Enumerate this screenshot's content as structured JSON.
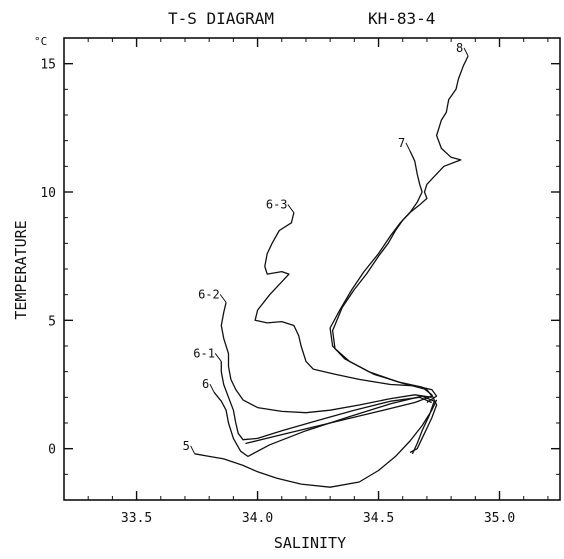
{
  "chart_data": {
    "type": "line",
    "title": "T-S DIAGRAM",
    "cruise": "KH-83-4",
    "xlabel": "SALINITY",
    "ylabel": "TEMPERATURE",
    "yunit": "°C",
    "xlim": [
      33.2,
      35.25
    ],
    "ylim": [
      -2,
      16
    ],
    "xticks": [
      "33.5",
      "34.0",
      "34.5",
      "35.0"
    ],
    "xtick_values": [
      33.5,
      34.0,
      34.5,
      35.0
    ],
    "yticks": [
      "0",
      "5",
      "10",
      "15"
    ],
    "ytick_values": [
      0,
      5,
      10,
      15
    ],
    "grid": false,
    "legend": "none",
    "series": [
      {
        "name": "8",
        "values": [
          [
            34.87,
            15.3
          ],
          [
            34.85,
            14.9
          ],
          [
            34.83,
            14.4
          ],
          [
            34.82,
            14.0
          ],
          [
            34.79,
            13.6
          ],
          [
            34.78,
            13.1
          ],
          [
            34.76,
            12.8
          ],
          [
            34.74,
            12.2
          ],
          [
            34.76,
            11.7
          ],
          [
            34.8,
            11.35
          ],
          [
            34.84,
            11.25
          ],
          [
            34.77,
            11.0
          ],
          [
            34.73,
            10.6
          ],
          [
            34.7,
            10.3
          ],
          [
            34.69,
            10.0
          ],
          [
            34.7,
            9.75
          ],
          [
            34.67,
            9.5
          ],
          [
            34.63,
            9.2
          ],
          [
            34.6,
            8.9
          ],
          [
            34.57,
            8.5
          ],
          [
            34.54,
            8.0
          ],
          [
            34.5,
            7.5
          ],
          [
            34.45,
            6.8
          ],
          [
            34.4,
            6.2
          ],
          [
            34.35,
            5.5
          ],
          [
            34.31,
            4.6
          ],
          [
            34.32,
            3.9
          ],
          [
            34.38,
            3.4
          ],
          [
            34.48,
            2.9
          ],
          [
            34.6,
            2.55
          ],
          [
            34.7,
            2.3
          ],
          [
            34.72,
            2.05
          ],
          [
            34.65,
            1.8
          ],
          [
            34.5,
            1.45
          ],
          [
            34.3,
            1.0
          ],
          [
            34.1,
            0.55
          ],
          [
            33.95,
            0.2
          ]
        ]
      },
      {
        "name": "7",
        "values": [
          [
            34.63,
            11.6
          ],
          [
            34.65,
            11.2
          ],
          [
            34.66,
            10.7
          ],
          [
            34.67,
            10.3
          ],
          [
            34.68,
            10.0
          ],
          [
            34.66,
            9.6
          ],
          [
            34.63,
            9.2
          ],
          [
            34.59,
            8.8
          ],
          [
            34.55,
            8.3
          ],
          [
            34.5,
            7.6
          ],
          [
            34.44,
            6.9
          ],
          [
            34.39,
            6.2
          ],
          [
            34.34,
            5.4
          ],
          [
            34.3,
            4.7
          ],
          [
            34.31,
            4.0
          ],
          [
            34.36,
            3.5
          ],
          [
            34.46,
            3.0
          ],
          [
            34.58,
            2.6
          ],
          [
            34.68,
            2.4
          ],
          [
            34.72,
            2.1
          ],
          [
            34.74,
            1.7
          ],
          [
            34.72,
            1.2
          ],
          [
            34.69,
            0.6
          ],
          [
            34.66,
            0.0
          ],
          [
            34.63,
            -0.15
          ]
        ]
      },
      {
        "name": "6-3",
        "values": [
          [
            34.15,
            9.2
          ],
          [
            34.14,
            8.8
          ],
          [
            34.09,
            8.5
          ],
          [
            34.06,
            8.0
          ],
          [
            34.04,
            7.6
          ],
          [
            34.03,
            7.1
          ],
          [
            34.04,
            6.8
          ],
          [
            34.1,
            6.9
          ],
          [
            34.13,
            6.8
          ],
          [
            34.09,
            6.4
          ],
          [
            34.05,
            6.0
          ],
          [
            34.0,
            5.4
          ],
          [
            33.99,
            5.0
          ],
          [
            34.04,
            4.9
          ],
          [
            34.1,
            4.95
          ],
          [
            34.15,
            4.8
          ],
          [
            34.17,
            4.4
          ],
          [
            34.18,
            4.0
          ],
          [
            34.2,
            3.4
          ],
          [
            34.23,
            3.1
          ],
          [
            34.32,
            2.9
          ],
          [
            34.42,
            2.7
          ],
          [
            34.55,
            2.5
          ],
          [
            34.65,
            2.45
          ],
          [
            34.72,
            2.3
          ],
          [
            34.74,
            2.05
          ],
          [
            34.7,
            1.8
          ]
        ]
      },
      {
        "name": "6-2",
        "values": [
          [
            33.87,
            5.7
          ],
          [
            33.86,
            5.3
          ],
          [
            33.85,
            4.8
          ],
          [
            33.86,
            4.3
          ],
          [
            33.88,
            3.7
          ],
          [
            33.88,
            3.2
          ],
          [
            33.89,
            2.7
          ],
          [
            33.91,
            2.3
          ],
          [
            33.94,
            1.9
          ],
          [
            34.0,
            1.6
          ],
          [
            34.1,
            1.45
          ],
          [
            34.2,
            1.4
          ],
          [
            34.3,
            1.5
          ],
          [
            34.42,
            1.7
          ],
          [
            34.55,
            1.95
          ],
          [
            34.65,
            2.1
          ],
          [
            34.72,
            2.0
          ]
        ]
      },
      {
        "name": "6-1",
        "values": [
          [
            33.85,
            3.4
          ],
          [
            33.85,
            3.0
          ],
          [
            33.86,
            2.5
          ],
          [
            33.88,
            2.0
          ],
          [
            33.9,
            1.5
          ],
          [
            33.91,
            1.0
          ],
          [
            33.92,
            0.6
          ],
          [
            33.94,
            0.35
          ],
          [
            34.0,
            0.4
          ],
          [
            34.1,
            0.7
          ],
          [
            34.25,
            1.1
          ],
          [
            34.4,
            1.5
          ],
          [
            34.55,
            1.85
          ],
          [
            34.67,
            2.0
          ],
          [
            34.72,
            1.8
          ]
        ]
      },
      {
        "name": "6",
        "values": [
          [
            33.82,
            2.2
          ],
          [
            33.85,
            1.85
          ],
          [
            33.87,
            1.5
          ],
          [
            33.88,
            1.0
          ],
          [
            33.9,
            0.4
          ],
          [
            33.93,
            -0.1
          ],
          [
            33.96,
            -0.3
          ],
          [
            34.05,
            0.15
          ],
          [
            34.2,
            0.7
          ],
          [
            34.38,
            1.25
          ],
          [
            34.55,
            1.75
          ],
          [
            34.68,
            2.05
          ],
          [
            34.73,
            1.85
          ],
          [
            34.71,
            1.3
          ],
          [
            34.68,
            0.7
          ],
          [
            34.66,
            0.2
          ],
          [
            34.64,
            -0.2
          ]
        ]
      },
      {
        "name": "5",
        "values": [
          [
            33.74,
            -0.2
          ],
          [
            33.8,
            -0.3
          ],
          [
            33.86,
            -0.4
          ],
          [
            33.94,
            -0.65
          ],
          [
            34.0,
            -0.9
          ],
          [
            34.08,
            -1.15
          ],
          [
            34.18,
            -1.38
          ],
          [
            34.3,
            -1.5
          ],
          [
            34.42,
            -1.3
          ],
          [
            34.5,
            -0.85
          ],
          [
            34.57,
            -0.3
          ],
          [
            34.63,
            0.3
          ],
          [
            34.68,
            0.9
          ],
          [
            34.72,
            1.5
          ],
          [
            34.74,
            1.9
          ]
        ]
      }
    ]
  }
}
